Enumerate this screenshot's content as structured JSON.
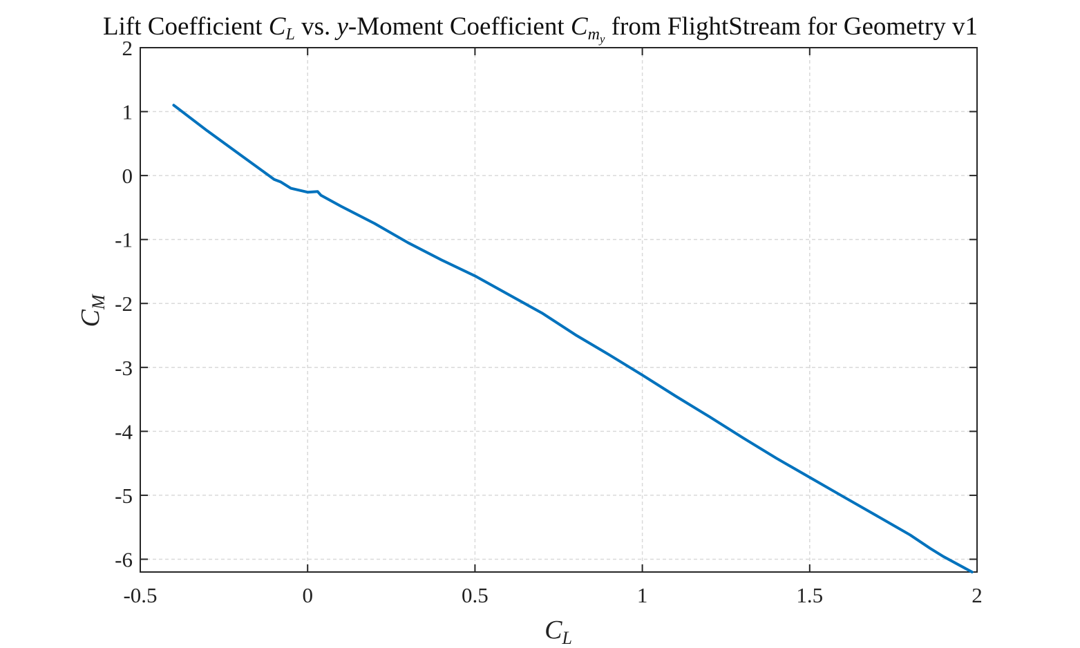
{
  "chart_data": {
    "type": "line",
    "title": {
      "prefix": "Lift Coefficient ",
      "cl_symbol": "C",
      "cl_sub": "L",
      "middle": " vs. ",
      "y_symbol": "y",
      "middle2": "-Moment Coefficient ",
      "cm_symbol": "C",
      "cm_sub": "m",
      "cm_subsub": "y",
      "suffix": " from FlightStream for Geometry v1"
    },
    "xlabel": {
      "symbol": "C",
      "sub": "L"
    },
    "ylabel": {
      "symbol": "C",
      "sub": "M"
    },
    "xlim": [
      -0.5,
      2
    ],
    "ylim": [
      -6.2,
      2
    ],
    "xticks": [
      -0.5,
      0,
      0.5,
      1,
      1.5,
      2
    ],
    "xtick_labels": [
      "-0.5",
      "0",
      "0.5",
      "1",
      "1.5",
      "2"
    ],
    "yticks": [
      2,
      1,
      0,
      -1,
      -2,
      -3,
      -4,
      -5,
      -6
    ],
    "ytick_labels": [
      "2",
      "1",
      "0",
      "-1",
      "-2",
      "-3",
      "-4",
      "-5",
      "-6"
    ],
    "grid": true,
    "line_color": "#0072BD",
    "series": [
      {
        "x": [
          -0.4,
          -0.3,
          -0.2,
          -0.1,
          -0.08,
          -0.05,
          0.0,
          0.03,
          0.04,
          0.1,
          0.2,
          0.3,
          0.4,
          0.5,
          0.6,
          0.7,
          0.8,
          0.9,
          1.0,
          1.1,
          1.2,
          1.3,
          1.4,
          1.5,
          1.6,
          1.7,
          1.8,
          1.86,
          1.9,
          1.985
        ],
        "y": [
          1.1,
          0.7,
          0.32,
          -0.06,
          -0.1,
          -0.2,
          -0.26,
          -0.25,
          -0.31,
          -0.48,
          -0.75,
          -1.05,
          -1.32,
          -1.57,
          -1.86,
          -2.15,
          -2.49,
          -2.8,
          -3.12,
          -3.45,
          -3.77,
          -4.1,
          -4.42,
          -4.72,
          -5.02,
          -5.32,
          -5.62,
          -5.83,
          -5.96,
          -6.2
        ]
      }
    ]
  }
}
